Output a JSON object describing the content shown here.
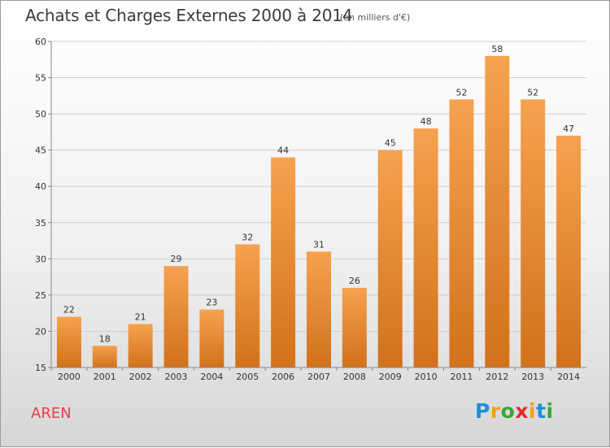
{
  "header": {
    "title": "Achats et Charges Externes 2000 à 2014",
    "subtitle": "(en milliers d'€)"
  },
  "footer": {
    "commune": "AREN",
    "logo_letters": [
      "P",
      "r",
      "o",
      "x",
      "i",
      "t",
      "i"
    ],
    "logo_colors": [
      "#1b8fd6",
      "#f0a01c",
      "#3aa535",
      "#e5262e",
      "#f0a01c",
      "#1b8fd6",
      "#3aa535"
    ]
  },
  "colors": {
    "bar_top": "#f6a24f",
    "bar_bottom": "#d2711b",
    "grid": "#cfcfcf",
    "axis": "#888888"
  },
  "chart_data": {
    "type": "bar",
    "title": "Achats et Charges Externes 2000 à 2014",
    "subtitle": "(en milliers d'€)",
    "categories": [
      "2000",
      "2001",
      "2002",
      "2003",
      "2004",
      "2005",
      "2006",
      "2007",
      "2008",
      "2009",
      "2010",
      "2011",
      "2012",
      "2013",
      "2014"
    ],
    "values": [
      22,
      18,
      21,
      29,
      23,
      32,
      44,
      31,
      26,
      45,
      48,
      52,
      58,
      52,
      47
    ],
    "data_labels": [
      "22",
      "18",
      "21",
      "29",
      "23",
      "32",
      "44",
      "31",
      "26",
      "45",
      "48",
      "52",
      "58",
      "52",
      "47"
    ],
    "ylim": [
      15,
      60
    ],
    "yticks": [
      15,
      20,
      25,
      30,
      35,
      40,
      45,
      50,
      55,
      60
    ],
    "xlabel": "",
    "ylabel": "",
    "grid": true
  }
}
